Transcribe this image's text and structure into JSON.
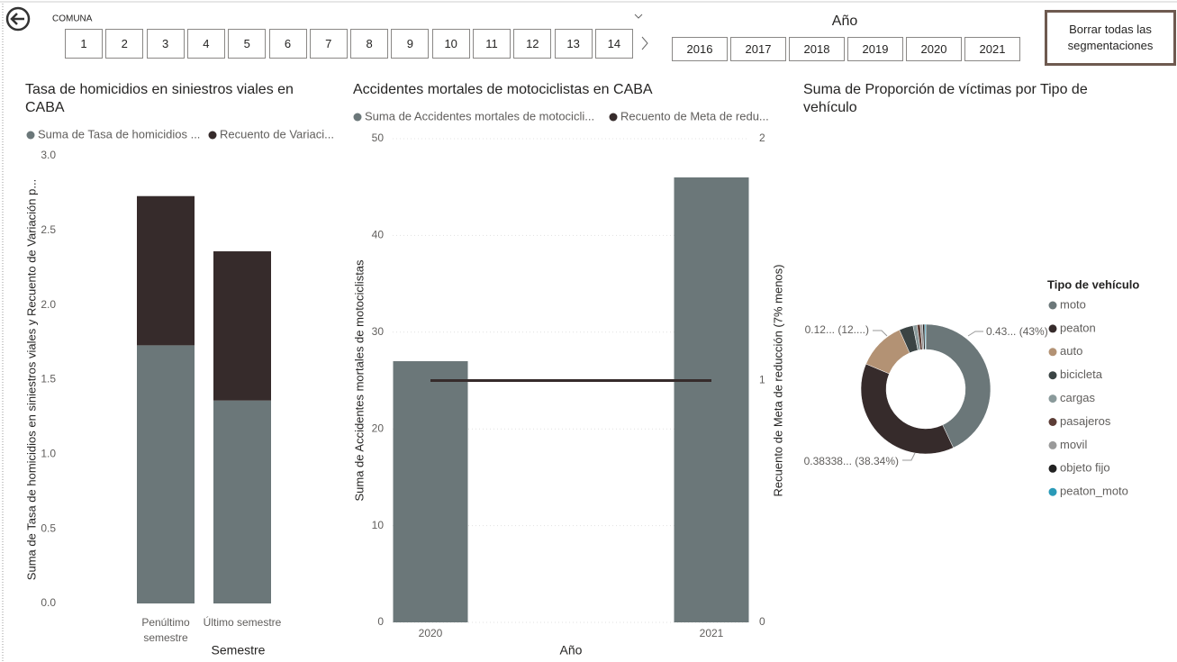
{
  "navigation": {
    "comuna_label": "COMUNA",
    "comunas": [
      "1",
      "2",
      "3",
      "4",
      "5",
      "6",
      "7",
      "8",
      "9",
      "10",
      "11",
      "12",
      "13",
      "14"
    ],
    "year_title": "Año",
    "years": [
      "2016",
      "2017",
      "2018",
      "2019",
      "2020",
      "2021"
    ],
    "clear_button": "Borrar todas las segmentaciones"
  },
  "chart_data": [
    {
      "type": "stacked_bar",
      "title": "Tasa de homicidios en siniestros viales en CABA",
      "x_label": "Semestre",
      "y_label": "Suma de Tasa de homicidios en siniestros viales y Recuento de Variación p...",
      "categories": [
        "Penúltimo semestre",
        "Último semestre"
      ],
      "series": [
        {
          "name": "Suma de Tasa de homicidios ...",
          "color": "#6b7779",
          "values": [
            1.73,
            1.36
          ]
        },
        {
          "name": "Recuento de Variaci...",
          "color": "#362b2b",
          "values": [
            1,
            1
          ]
        }
      ],
      "ylim": [
        0,
        3
      ],
      "yticks": [
        {
          "value": 0,
          "label": "0.0"
        },
        0.5,
        {
          "value": 1,
          "label": "1.0"
        },
        1.5,
        {
          "value": 2,
          "label": "2.0"
        },
        2.5,
        {
          "value": 3,
          "label": "3.0"
        }
      ],
      "grid": false
    },
    {
      "type": "bar_line",
      "title": "Accidentes mortales de motociclistas en CABA",
      "x_label": "Año",
      "y_label": "Suma de Accidentes mortales de motociclistas",
      "y2_label": "Recuento de Meta de reducción (7% menos)",
      "categories": [
        "2020",
        "2021"
      ],
      "series": [
        {
          "name": "Suma de Accidentes mortales de motocicli...",
          "color": "#6b7779",
          "values": [
            27,
            46
          ]
        },
        {
          "name": "Recuento de Meta de redu...",
          "color": "#362b2b",
          "axis": "y2",
          "values": [
            1,
            1
          ]
        }
      ],
      "ylim": [
        0,
        50
      ],
      "yticks": [
        0,
        10,
        20,
        30,
        40,
        50
      ],
      "y2lim": [
        0,
        2
      ],
      "y2ticks": [
        0,
        1,
        2
      ],
      "grid": true
    },
    {
      "type": "donut",
      "title": "Suma de Proporción de víctimas por Tipo de vehículo",
      "legend_title": "Tipo de vehículo",
      "categories": [
        "moto",
        "peaton",
        "auto",
        "bicicleta",
        "cargas",
        "pasajeros",
        "movil",
        "objeto fijo",
        "peaton_moto"
      ],
      "values": [
        0.43,
        0.38338,
        0.12,
        0.035,
        0.01,
        0.008,
        0.006,
        0.005,
        0.00262
      ],
      "value_labels": [
        "0.43... (43%)",
        "0.38338... (38.34%)",
        "0.12... (12....)",
        null,
        null,
        null,
        null,
        null,
        null
      ],
      "colors": [
        "#6b7779",
        "#362b2b",
        "#b39274",
        "#3b4444",
        "#8a9a9b",
        "#5c3d36",
        "#9a9a9a",
        "#222222",
        "#2a9ab8"
      ]
    }
  ]
}
